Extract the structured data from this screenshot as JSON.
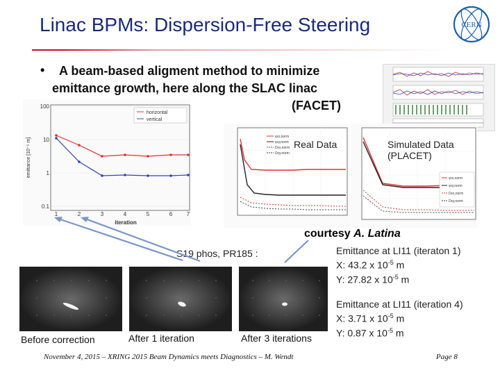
{
  "header": {
    "title": "Linac BPMs: Dispersion-Free Steering",
    "logo_text": "CERN",
    "accent_color": "#c8102e",
    "title_color": "#1a2a7c"
  },
  "bullet": {
    "marker": "•",
    "line1": "A beam-based aligment method to minimize",
    "line2": "emittance growth, here along the SLAC linac",
    "line3": "(FACET)"
  },
  "plots": {
    "real_data_label": "Real Data",
    "simulated_label_line1": "Simulated Data",
    "simulated_label_line2": "(PLACET)",
    "left_plot": {
      "ylabel": "emittance [10⁻⁵ m]",
      "xlabel": "iteration",
      "y_ticks": [
        "100",
        "10",
        "1",
        "0.1"
      ],
      "x_ticks": [
        "1",
        "2",
        "3",
        "4",
        "5",
        "6",
        "7"
      ],
      "legend": [
        "horizontal",
        "vertical"
      ]
    },
    "mid_plot": {
      "legend": [
        "γεx,norm",
        "γεy,norm",
        "Dεx,norm",
        "Dεy,norm"
      ]
    },
    "right_plot": {
      "legend": [
        "γεx,norm",
        "γεy,norm",
        "Dεx,norm",
        "Dεy,norm"
      ]
    }
  },
  "courtesy": {
    "prefix": "courtesy",
    "name": "A. Latina"
  },
  "screen_label": "S19 phos, PR185 :",
  "emittance_before": {
    "line1": "Emittance at LI11 (iteraton 1)",
    "x_prefix": "X: 43.2 x 10",
    "y_prefix": "Y: 27.82 x 10",
    "exponent": "-5",
    "unit": " m"
  },
  "emittance_after": {
    "line1": "Emittance at LI11 (iteration 4)",
    "x_prefix": "X: 3.71 x 10",
    "y_prefix": "Y: 0.87 x 10",
    "exponent": "-5",
    "unit": " m"
  },
  "images": {
    "caption1": "Before correction",
    "caption2": "After 1 iteration",
    "caption3": "After 3 iterations"
  },
  "footer": {
    "text": "November 4, 2015 – XRING 2015 Beam Dynamics meets Diagnostics – M. Wendt",
    "page": "Page  8"
  }
}
